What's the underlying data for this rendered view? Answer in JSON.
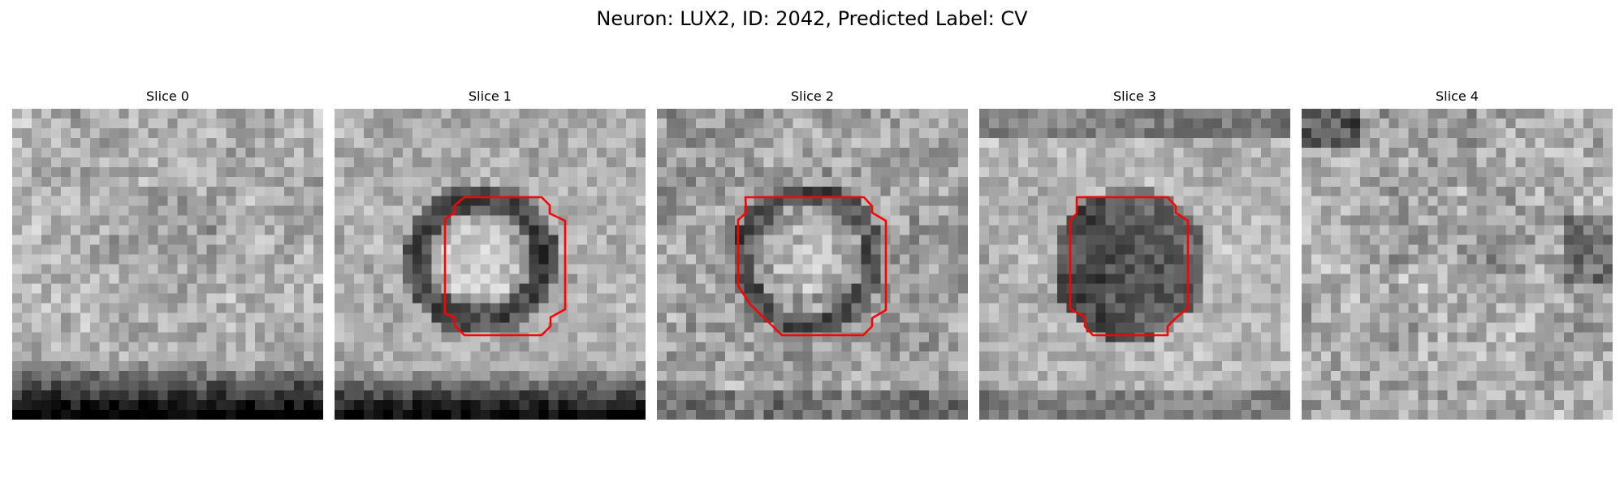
{
  "figure": {
    "title": "Neuron: LUX2, ID: 2042, Predicted Label: CV"
  },
  "panels": [
    {
      "title": "Slice 0",
      "has_contour": false,
      "contour_color": "#ff0000"
    },
    {
      "title": "Slice 1",
      "has_contour": true,
      "contour_color": "#ff0000"
    },
    {
      "title": "Slice 2",
      "has_contour": true,
      "contour_color": "#ff0000"
    },
    {
      "title": "Slice 3",
      "has_contour": true,
      "contour_color": "#ff0000"
    },
    {
      "title": "Slice 4",
      "has_contour": false,
      "contour_color": "#ff0000"
    }
  ]
}
